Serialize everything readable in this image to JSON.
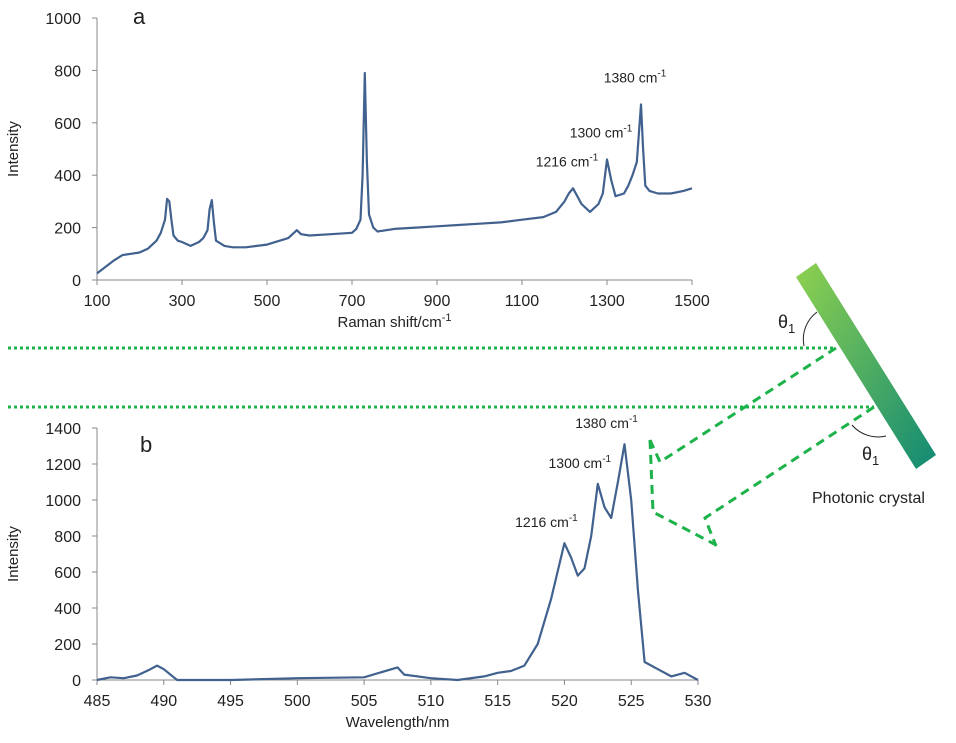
{
  "chart_data": [
    {
      "type": "line",
      "panel_label": "a",
      "xlabel": {
        "text": "Raman shift/cm",
        "sup": "-1"
      },
      "ylabel": "Intensity",
      "xlim": [
        100,
        1500
      ],
      "xticks": [
        100,
        300,
        500,
        700,
        900,
        1100,
        1300,
        1500
      ],
      "ylim": [
        0,
        1000
      ],
      "yticks": [
        0,
        200,
        400,
        600,
        800,
        1000
      ],
      "series": [
        {
          "color": "#41618f",
          "x": [
            100,
            120,
            140,
            160,
            180,
            200,
            220,
            240,
            250,
            260,
            265,
            270,
            275,
            280,
            290,
            300,
            320,
            340,
            350,
            360,
            365,
            370,
            375,
            380,
            400,
            420,
            450,
            500,
            550,
            570,
            580,
            600,
            650,
            700,
            710,
            720,
            725,
            730,
            735,
            740,
            750,
            760,
            800,
            850,
            900,
            950,
            1000,
            1050,
            1100,
            1150,
            1180,
            1200,
            1210,
            1220,
            1230,
            1240,
            1260,
            1280,
            1290,
            1300,
            1310,
            1320,
            1340,
            1350,
            1360,
            1370,
            1375,
            1380,
            1385,
            1390,
            1400,
            1420,
            1450,
            1480,
            1500
          ],
          "values": [
            25,
            50,
            75,
            95,
            100,
            105,
            120,
            150,
            180,
            230,
            310,
            300,
            230,
            170,
            150,
            145,
            130,
            145,
            160,
            190,
            270,
            305,
            220,
            150,
            130,
            125,
            125,
            135,
            160,
            190,
            175,
            170,
            175,
            180,
            195,
            230,
            400,
            790,
            450,
            250,
            200,
            185,
            195,
            200,
            205,
            210,
            215,
            220,
            230,
            240,
            260,
            300,
            330,
            350,
            320,
            290,
            260,
            290,
            330,
            460,
            380,
            320,
            330,
            360,
            400,
            450,
            560,
            670,
            500,
            360,
            340,
            330,
            330,
            340,
            350
          ]
        }
      ],
      "annotations": [
        {
          "text": "1216 cm",
          "sup": "-1",
          "x": 1220,
          "y": 350
        },
        {
          "text": "1300 cm",
          "sup": "-1",
          "x": 1300,
          "y": 460
        },
        {
          "text": "1380 cm",
          "sup": "-1",
          "x": 1380,
          "y": 670
        }
      ]
    },
    {
      "type": "line",
      "panel_label": "b",
      "xlabel": {
        "text": "Wavelength/nm"
      },
      "ylabel": "Intensity",
      "xlim": [
        485,
        530
      ],
      "xticks": [
        485,
        490,
        495,
        500,
        505,
        510,
        515,
        520,
        525,
        530
      ],
      "ylim": [
        0,
        1400
      ],
      "yticks": [
        0,
        200,
        400,
        600,
        800,
        1000,
        1200,
        1400
      ],
      "series": [
        {
          "color": "#41618f",
          "x": [
            485,
            486,
            487,
            488,
            489,
            489.5,
            490,
            491,
            495,
            500,
            505,
            507.5,
            508,
            510,
            512,
            514,
            515,
            516,
            517,
            518,
            519,
            520,
            520.5,
            521,
            521.5,
            522,
            522.5,
            523,
            523.5,
            524,
            524.5,
            525,
            525.5,
            526,
            527,
            528,
            529,
            530
          ],
          "values": [
            0,
            15,
            10,
            25,
            60,
            80,
            60,
            0,
            0,
            10,
            15,
            70,
            30,
            10,
            0,
            20,
            40,
            50,
            80,
            200,
            450,
            760,
            680,
            580,
            620,
            800,
            1090,
            960,
            900,
            1100,
            1310,
            1000,
            500,
            100,
            60,
            20,
            40,
            0
          ]
        }
      ],
      "annotations": [
        {
          "text": "1216 cm",
          "sup": "-1",
          "x": 520,
          "y": 760
        },
        {
          "text": "1300 cm",
          "sup": "-1",
          "x": 522.5,
          "y": 1090
        },
        {
          "text": "1380 cm",
          "sup": "-1",
          "x": 524.5,
          "y": 1310
        }
      ]
    }
  ],
  "diagram": {
    "angles": [
      {
        "symbol": "θ",
        "sub": "1"
      },
      {
        "symbol": "θ",
        "sub": "1"
      }
    ],
    "crystal_label": "Photonic crystal"
  }
}
